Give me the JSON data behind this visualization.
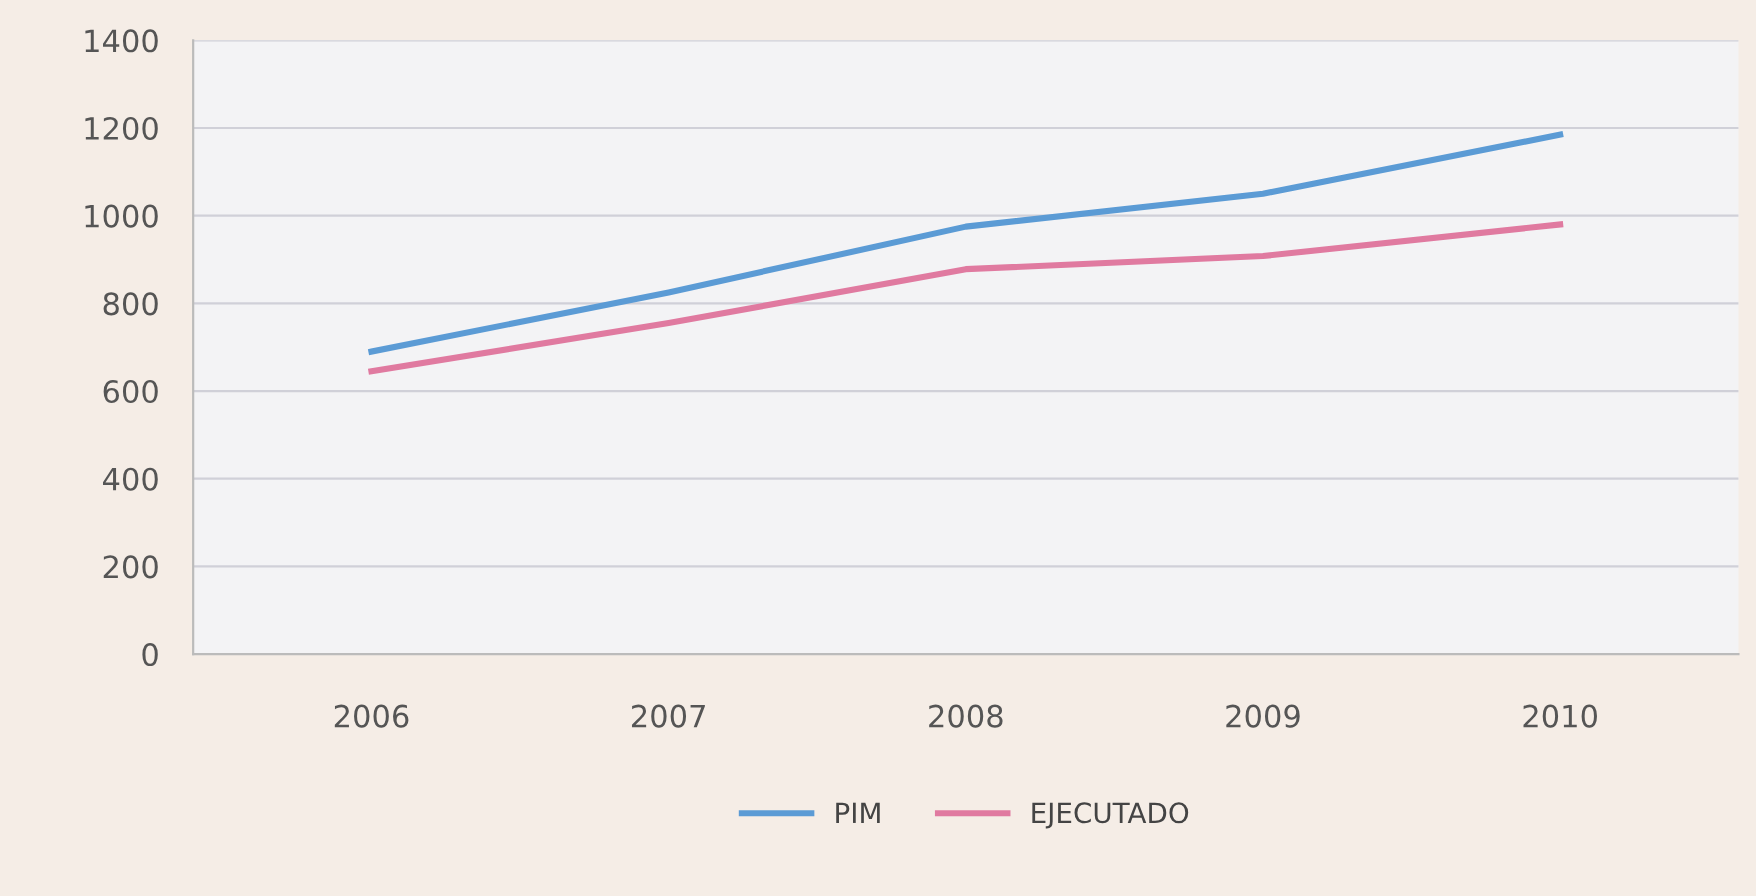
{
  "chart_data": {
    "type": "line",
    "categories": [
      "2006",
      "2007",
      "2008",
      "2009",
      "2010"
    ],
    "series": [
      {
        "name": "PIM",
        "color": "#5b9bd5",
        "values": [
          690,
          825,
          975,
          1050,
          1185
        ]
      },
      {
        "name": "EJECUTADO",
        "color": "#e07aa0",
        "values": [
          645,
          755,
          878,
          908,
          980
        ]
      }
    ],
    "ylim": [
      0,
      1400
    ],
    "yticks": [
      0,
      200,
      400,
      600,
      800,
      1000,
      1200,
      1400
    ],
    "grid": "y",
    "legend": "bottom"
  }
}
